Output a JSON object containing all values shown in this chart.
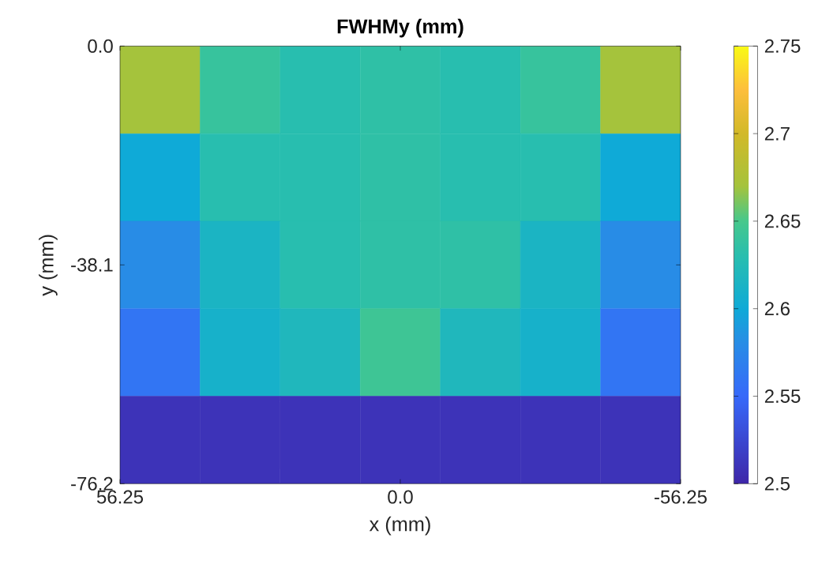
{
  "chart_data": {
    "type": "heatmap",
    "title": "FWHMy (mm)",
    "xlabel": "x (mm)",
    "ylabel": "y (mm)",
    "cells": [
      [
        2.67,
        2.64,
        2.63,
        2.635,
        2.63,
        2.64,
        2.67
      ],
      [
        2.6,
        2.63,
        2.63,
        2.635,
        2.63,
        2.63,
        2.6
      ],
      [
        2.58,
        2.615,
        2.63,
        2.635,
        2.635,
        2.615,
        2.58
      ],
      [
        2.56,
        2.61,
        2.62,
        2.645,
        2.62,
        2.61,
        2.56
      ],
      [
        2.51,
        2.51,
        2.51,
        2.51,
        2.51,
        2.51,
        2.51
      ]
    ],
    "xlim": [
      56.25,
      -56.25
    ],
    "xticks": [
      56.25,
      {
        "value": 0,
        "label": "0.0"
      },
      -56.25
    ],
    "ylim": [
      -76.2,
      0
    ],
    "yticks": [
      -76.2,
      -38.1,
      {
        "value": 0,
        "label": "0.0"
      }
    ],
    "clim": [
      2.5,
      2.75
    ],
    "cticks": [
      2.5,
      2.55,
      2.6,
      2.65,
      2.7,
      2.75
    ]
  }
}
